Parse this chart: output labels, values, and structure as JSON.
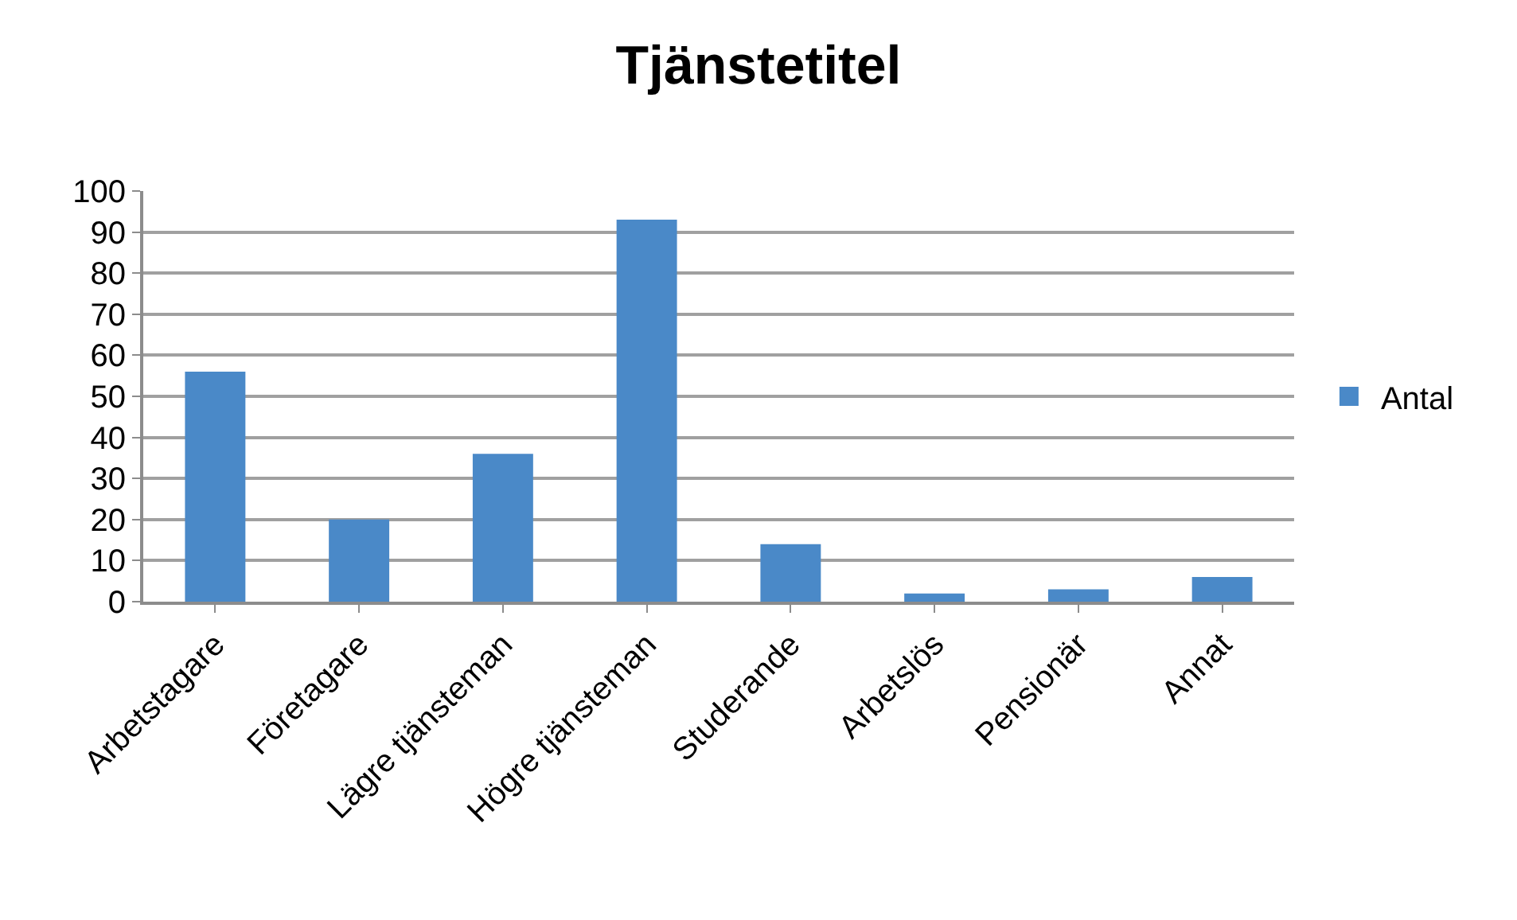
{
  "chart_data": {
    "type": "bar",
    "title": "Tjänstetitel",
    "categories": [
      "Arbetstagare",
      "Företagare",
      "Lägre tjänsteman",
      "Högre tjänsteman",
      "Studerande",
      "Arbetslös",
      "Pensionär",
      "Annat"
    ],
    "series": [
      {
        "name": "Antal",
        "color": "#4a89c8",
        "values": [
          56,
          20,
          36,
          93,
          14,
          2,
          3,
          6
        ]
      }
    ],
    "ylim": [
      0,
      100
    ],
    "yticks": [
      0,
      10,
      20,
      30,
      40,
      50,
      60,
      70,
      80,
      90,
      100
    ],
    "grid": "y",
    "legend": "right"
  }
}
